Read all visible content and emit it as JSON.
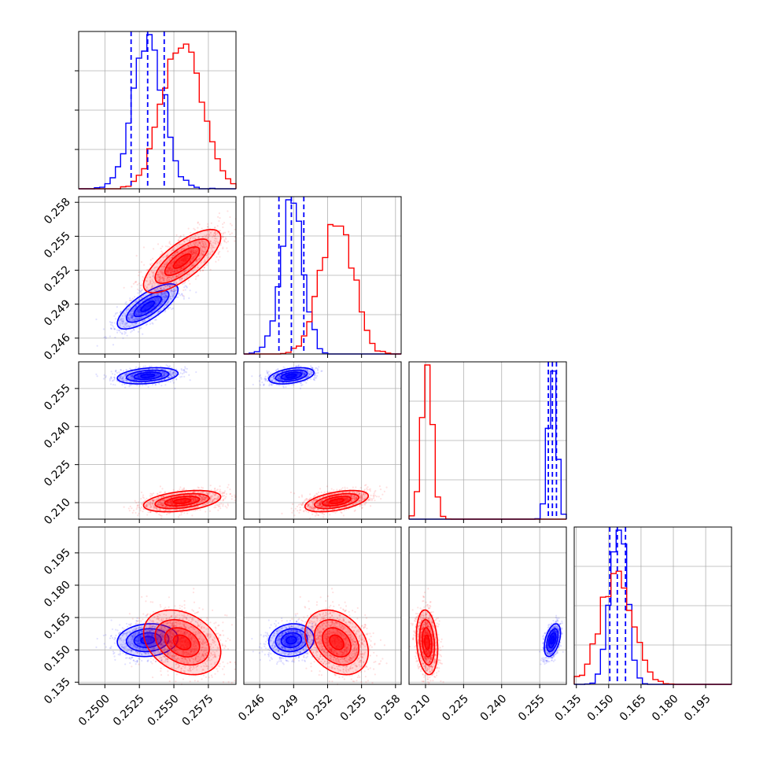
{
  "chart_data": {
    "type": "corner",
    "parameters": 4,
    "grid": true,
    "series": [
      {
        "name": "",
        "color": "#0000ff",
        "means": [
          0.2531,
          0.2488,
          0.26,
          0.1545
        ],
        "stds": [
          0.0011,
          0.001,
          0.0016,
          0.0038
        ],
        "correlations": [
          [
            1,
            0.75,
            0.3,
            0.1
          ],
          [
            0.75,
            1,
            0.4,
            0.1
          ],
          [
            0.3,
            0.4,
            1,
            0.45
          ],
          [
            0.1,
            0.1,
            0.45,
            1
          ]
        ],
        "quantiles": [
          [
            0.2519,
            0.2531,
            0.2543
          ],
          [
            0.2477,
            0.2488,
            0.2499
          ],
          [
            0.2584,
            0.26,
            0.2616
          ],
          [
            0.1505,
            0.154,
            0.1578
          ]
        ]
      },
      {
        "name": "",
        "color": "#ff0000",
        "means": [
          0.2556,
          0.2528,
          0.2106,
          0.1535
        ],
        "stds": [
          0.0014,
          0.0014,
          0.0021,
          0.0075
        ],
        "correlations": [
          [
            1,
            0.75,
            0.4,
            -0.3
          ],
          [
            0.75,
            1,
            0.5,
            -0.3
          ],
          [
            0.4,
            0.5,
            1,
            -0.2
          ],
          [
            -0.3,
            -0.3,
            -0.2,
            1
          ]
        ]
      }
    ],
    "axes": [
      {
        "ticks": [
          0.25,
          0.2525,
          0.255,
          0.2575
        ],
        "tick_labels": [
          "0.2500",
          "0.2525",
          "0.2550",
          "0.2575"
        ],
        "range": [
          0.2481,
          0.2595
        ]
      },
      {
        "ticks": [
          0.246,
          0.249,
          0.252,
          0.255,
          0.258
        ],
        "tick_labels": [
          "0.246",
          "0.249",
          "0.252",
          "0.255",
          "0.258"
        ],
        "range": [
          0.2446,
          0.2585
        ]
      },
      {
        "ticks": [
          0.21,
          0.225,
          0.24,
          0.255
        ],
        "tick_labels": [
          "0.210",
          "0.225",
          "0.240",
          "0.255"
        ],
        "range": [
          0.2035,
          0.2655
        ]
      },
      {
        "ticks": [
          0.135,
          0.15,
          0.165,
          0.18,
          0.195
        ],
        "tick_labels": [
          "0.135",
          "0.150",
          "0.165",
          "0.180",
          "0.195"
        ],
        "range": [
          0.134,
          0.207
        ]
      }
    ]
  }
}
